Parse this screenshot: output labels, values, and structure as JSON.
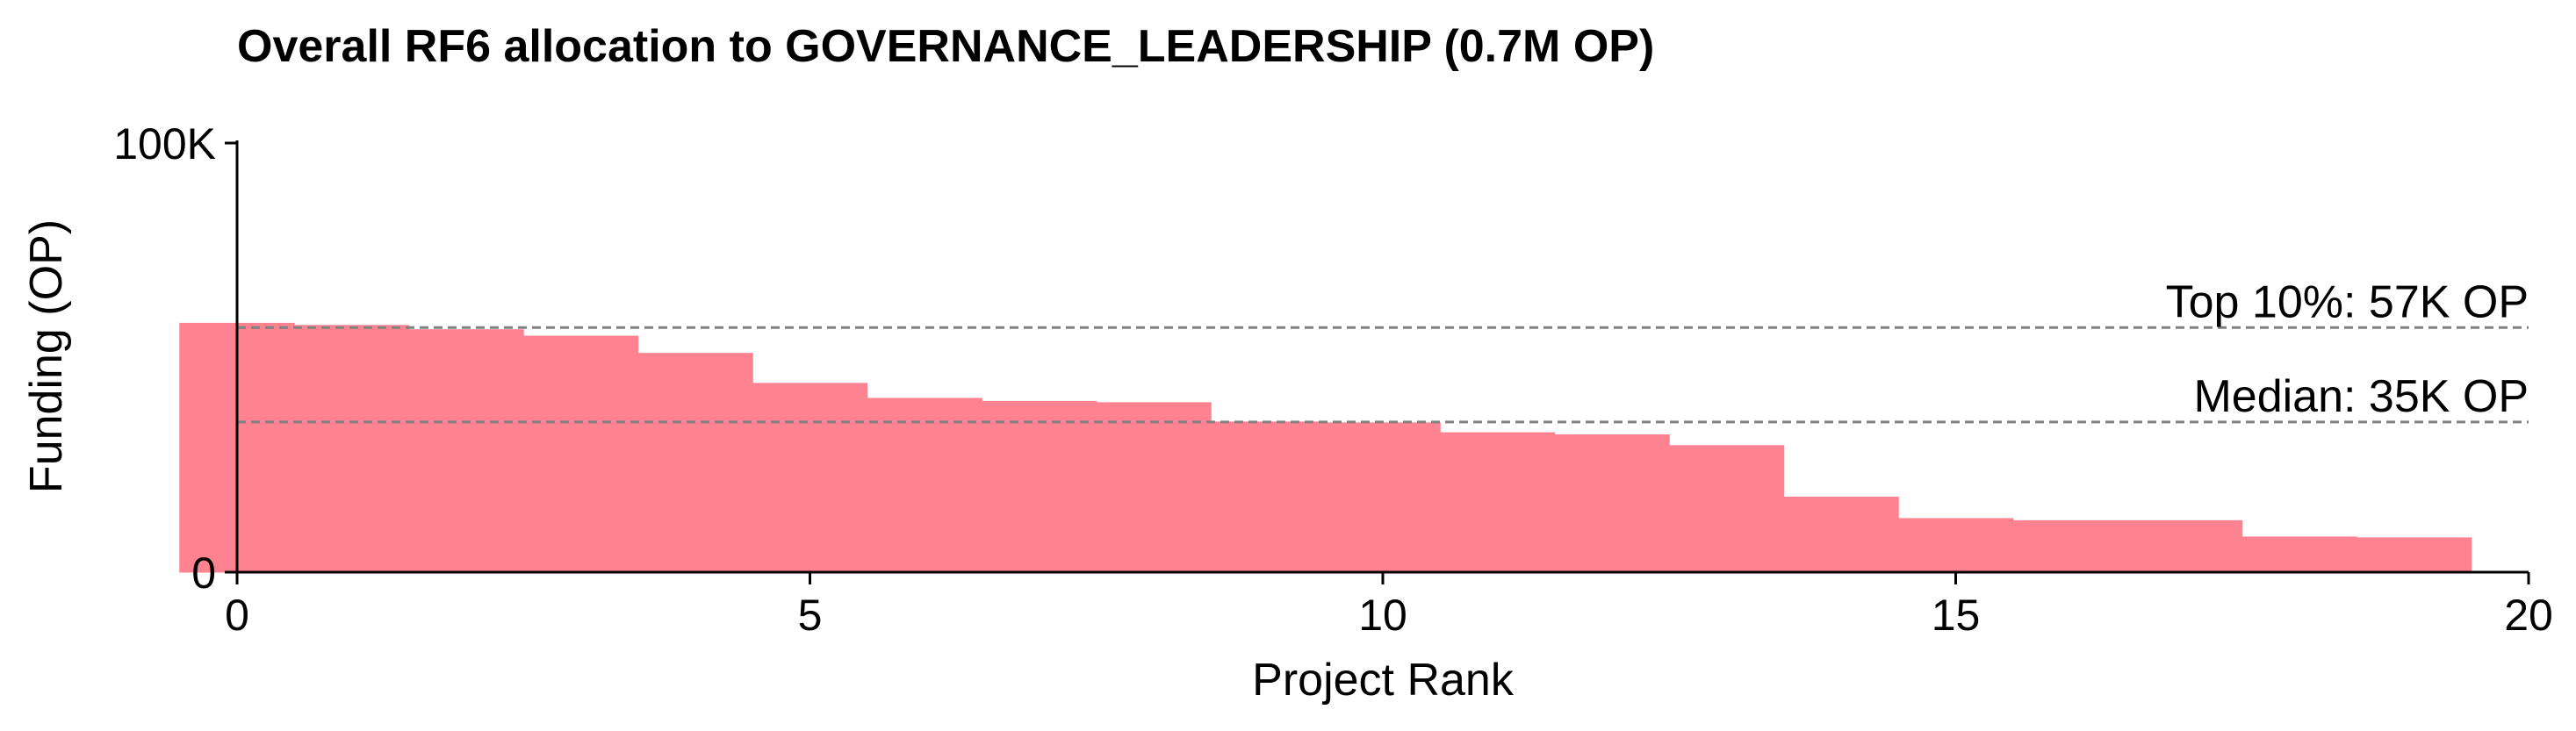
{
  "chart_data": {
    "type": "bar",
    "title": "Overall RF6 allocation to GOVERNANCE_LEADERSHIP (0.7M OP)",
    "xlabel": "Project Rank",
    "ylabel": "Funding (OP)",
    "xlim": [
      0,
      20
    ],
    "ylim": [
      0,
      100000
    ],
    "x_ticks": [
      {
        "value": 0,
        "label": "0"
      },
      {
        "value": 5,
        "label": "5"
      },
      {
        "value": 10,
        "label": "10"
      },
      {
        "value": 15,
        "label": "15"
      },
      {
        "value": 20,
        "label": "20"
      }
    ],
    "y_ticks": [
      {
        "value": 0,
        "label": "0"
      },
      {
        "value": 100000,
        "label": "100K"
      }
    ],
    "bar_width": 1,
    "x": [
      0,
      1,
      2,
      3,
      4,
      5,
      6,
      7,
      8,
      9,
      10,
      11,
      12,
      13,
      14,
      15,
      16,
      17,
      18,
      19
    ],
    "values": [
      58000,
      57500,
      56500,
      55000,
      51000,
      44000,
      40500,
      39800,
      39500,
      35000,
      34800,
      32500,
      32000,
      29500,
      17500,
      12500,
      12000,
      12000,
      8200,
      8000
    ],
    "bar_color": "#ff8290",
    "reference_lines": [
      {
        "value": 57000,
        "label": "Top 10%: 57K OP",
        "color": "#808080",
        "style": "dashed"
      },
      {
        "value": 35000,
        "label": "Median: 35K OP",
        "color": "#808080",
        "style": "dashed"
      }
    ],
    "grid": false,
    "legend": "none"
  }
}
